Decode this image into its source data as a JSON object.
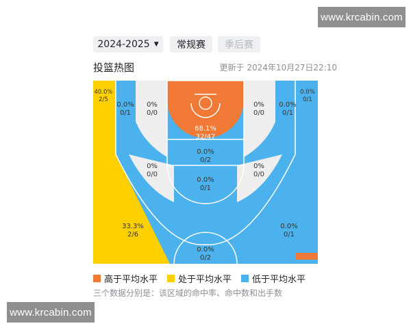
{
  "watermark": {
    "text": "www.krcabin.com"
  },
  "header": {
    "season_label": "2024-2025",
    "tabs": [
      {
        "label": "常规赛",
        "active": true
      },
      {
        "label": "季后赛",
        "active": false
      }
    ]
  },
  "title": "投篮热图",
  "updated": "更新于 2024年10月27日22:10",
  "colors": {
    "above_average": "#f07a35",
    "at_average": "#ffd000",
    "below_average": "#4cb2ee",
    "no_data": "#eeeeee"
  },
  "zones": [
    {
      "id": "left-corner-three",
      "pct": "40.0%",
      "ratio": "2/5",
      "level": "at_average"
    },
    {
      "id": "left-baseline-mid",
      "pct": "0.0%",
      "ratio": "0/1",
      "level": "below_average"
    },
    {
      "id": "left-short-baseline",
      "pct": "0%",
      "ratio": "0/0",
      "level": "no_data"
    },
    {
      "id": "restricted-area",
      "pct": "68.1%",
      "ratio": "32/47",
      "level": "above_average"
    },
    {
      "id": "right-short-baseline",
      "pct": "0%",
      "ratio": "0/0",
      "level": "no_data"
    },
    {
      "id": "right-baseline-mid",
      "pct": "0.0%",
      "ratio": "0/1",
      "level": "below_average"
    },
    {
      "id": "right-corner-three",
      "pct": "0.0%",
      "ratio": "0/1",
      "level": "below_average"
    },
    {
      "id": "paint-non-ra",
      "pct": "0.0%",
      "ratio": "0/2",
      "level": "below_average"
    },
    {
      "id": "left-elbow",
      "pct": "0%",
      "ratio": "0/0",
      "level": "no_data"
    },
    {
      "id": "right-elbow",
      "pct": "0%",
      "ratio": "0/0",
      "level": "no_data"
    },
    {
      "id": "top-key-mid",
      "pct": "0.0%",
      "ratio": "0/1",
      "level": "below_average"
    },
    {
      "id": "left-wing-three",
      "pct": "33.3%",
      "ratio": "2/6",
      "level": "at_average"
    },
    {
      "id": "right-wing-three",
      "pct": "0.0%",
      "ratio": "0/1",
      "level": "below_average"
    },
    {
      "id": "top-key-three",
      "pct": "0.0%",
      "ratio": "0/2",
      "level": "below_average"
    }
  ],
  "legend": [
    {
      "label": "高于平均水平",
      "level": "above_average"
    },
    {
      "label": "处于平均水平",
      "level": "at_average"
    },
    {
      "label": "低于平均水平",
      "level": "below_average"
    }
  ],
  "footnote": "三个数据分别是：该区域的命中率、命中数和出手数"
}
